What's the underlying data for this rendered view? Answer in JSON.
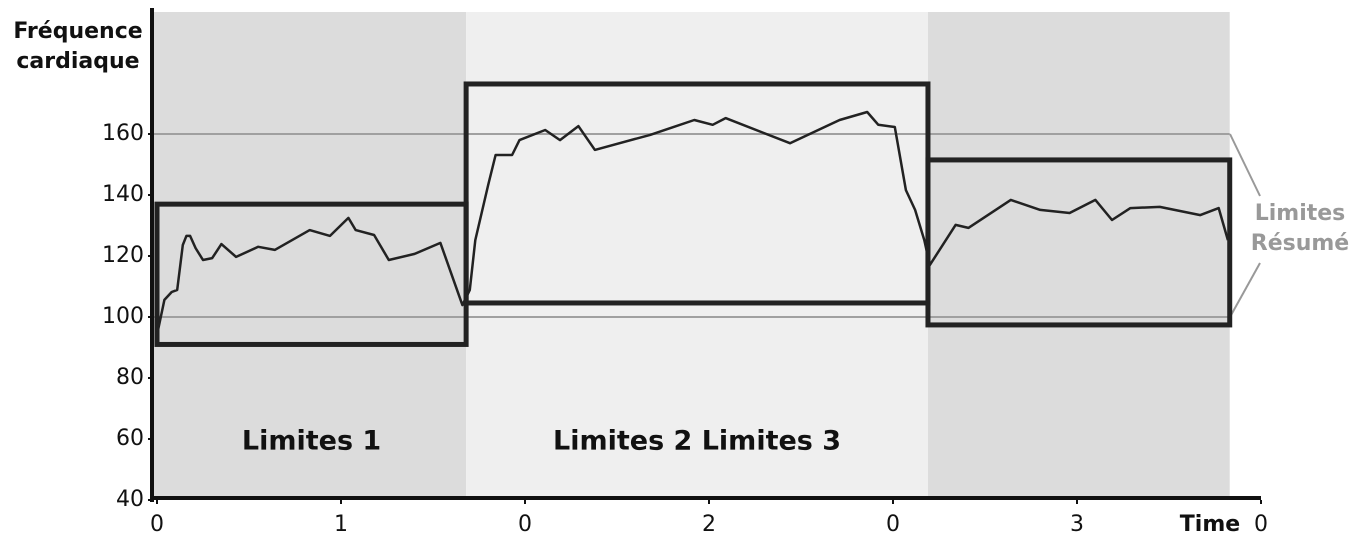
{
  "chart_data": {
    "type": "line",
    "y_label": [
      "Fréquence",
      "cardiaque"
    ],
    "x_label": "Time",
    "x": [
      0.0,
      0.04,
      0.08,
      0.11,
      0.14,
      0.16,
      0.18,
      0.21,
      0.25,
      0.3,
      0.35,
      0.43,
      0.55,
      0.64,
      0.83,
      0.94,
      1.04,
      1.08,
      1.18,
      1.26,
      1.4,
      1.54,
      1.66,
      1.7,
      1.73,
      1.8,
      1.84,
      1.93,
      1.97,
      2.11,
      2.19,
      2.29,
      2.38,
      2.68,
      2.92,
      3.02,
      3.09,
      3.44,
      3.71,
      3.86,
      3.92,
      4.01,
      4.07,
      4.12,
      4.17,
      4.2,
      4.34,
      4.41,
      4.64,
      4.8,
      4.96,
      5.1,
      5.19,
      5.29,
      5.45,
      5.67,
      5.77,
      5.82
    ],
    "values": [
      94.1,
      105.6,
      108.2,
      108.9,
      123.6,
      126.6,
      126.6,
      122.6,
      118.7,
      119.3,
      123.9,
      119.7,
      123,
      122,
      128.5,
      126.6,
      132.5,
      128.5,
      126.9,
      118.7,
      120.7,
      124.3,
      103.9,
      108.9,
      125.2,
      143.3,
      153.1,
      153.1,
      158,
      161.3,
      158,
      162.6,
      154.8,
      159.7,
      164.6,
      163,
      165.2,
      157,
      164.6,
      167.2,
      163,
      162.3,
      141.6,
      135.1,
      125.2,
      117,
      130.2,
      129.2,
      138.4,
      135.1,
      134.1,
      138.4,
      131.8,
      135.7,
      136.1,
      133.4,
      135.7,
      125.2
    ],
    "color": "#222222",
    "xlim": [
      0,
      6
    ],
    "xticks": [
      0,
      1,
      {
        "value": 2,
        "label": "0"
      },
      {
        "value": 3,
        "label": "2"
      },
      {
        "value": 4,
        "label": "0"
      },
      {
        "value": 5,
        "label": "3"
      },
      {
        "value": 6,
        "label": "0"
      }
    ],
    "ylim": [
      40,
      200
    ],
    "yticks": [
      40,
      60,
      80,
      100,
      120,
      140,
      160
    ],
    "zones": [
      {
        "label": "Limites 1",
        "x": [
          0,
          1.68
        ],
        "y": [
          91,
          137
        ],
        "color": "#dcdcdc"
      },
      {
        "label": "Limites 2 Limites 3",
        "x": [
          1.68,
          4.19
        ],
        "y": [
          104.6,
          176.4
        ],
        "color": "#efefef"
      },
      {
        "x": [
          4.19,
          5.83
        ],
        "y": [
          97.4,
          151.5
        ],
        "color": "#dcdcdc"
      }
    ],
    "reference_lines": [
      100,
      160
    ],
    "reference_color": "#a0a0a0",
    "annotation": [
      "Limites",
      "Résumé"
    ]
  }
}
